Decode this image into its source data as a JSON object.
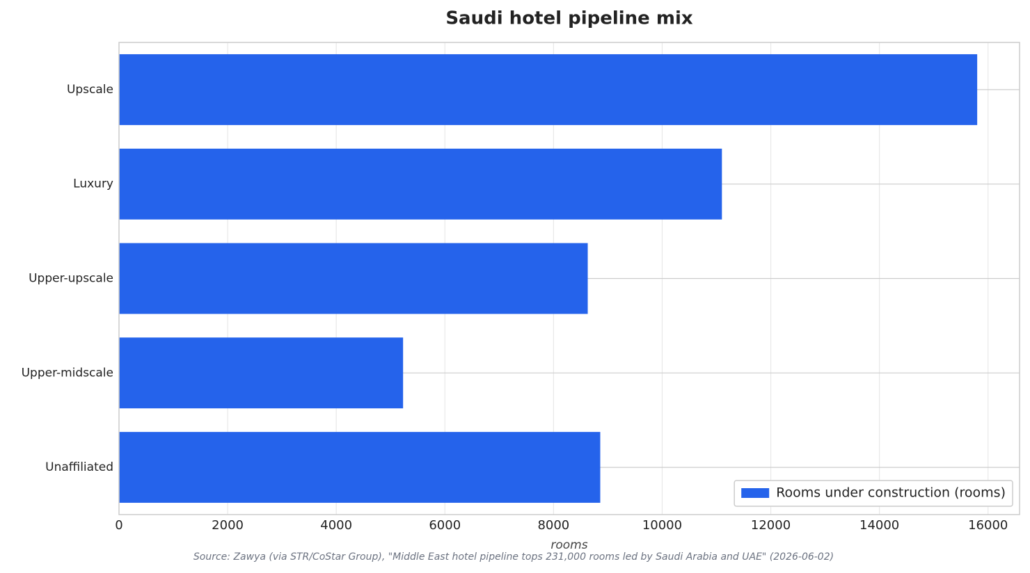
{
  "chart_data": {
    "type": "barh",
    "title": "Saudi hotel pipeline mix",
    "categories": [
      "Upscale",
      "Luxury",
      "Upper-upscale",
      "Upper-midscale",
      "Unaffiliated"
    ],
    "series": [
      {
        "name": "Rooms under construction (rooms)",
        "color": "#2563eb",
        "values": [
          15800,
          11100,
          8630,
          5230,
          8860
        ]
      }
    ],
    "xlabel": "rooms",
    "xlim": [
      0,
      16580
    ],
    "xticks": [
      0,
      2000,
      4000,
      6000,
      8000,
      10000,
      12000,
      14000,
      16000
    ],
    "grid": true,
    "legend": "lower right",
    "source": "Source: Zawya (via STR/CoStar Group), \"Middle East hotel pipeline tops 231,000 rooms led by Saudi Arabia and UAE\" (2026-06-02)"
  }
}
